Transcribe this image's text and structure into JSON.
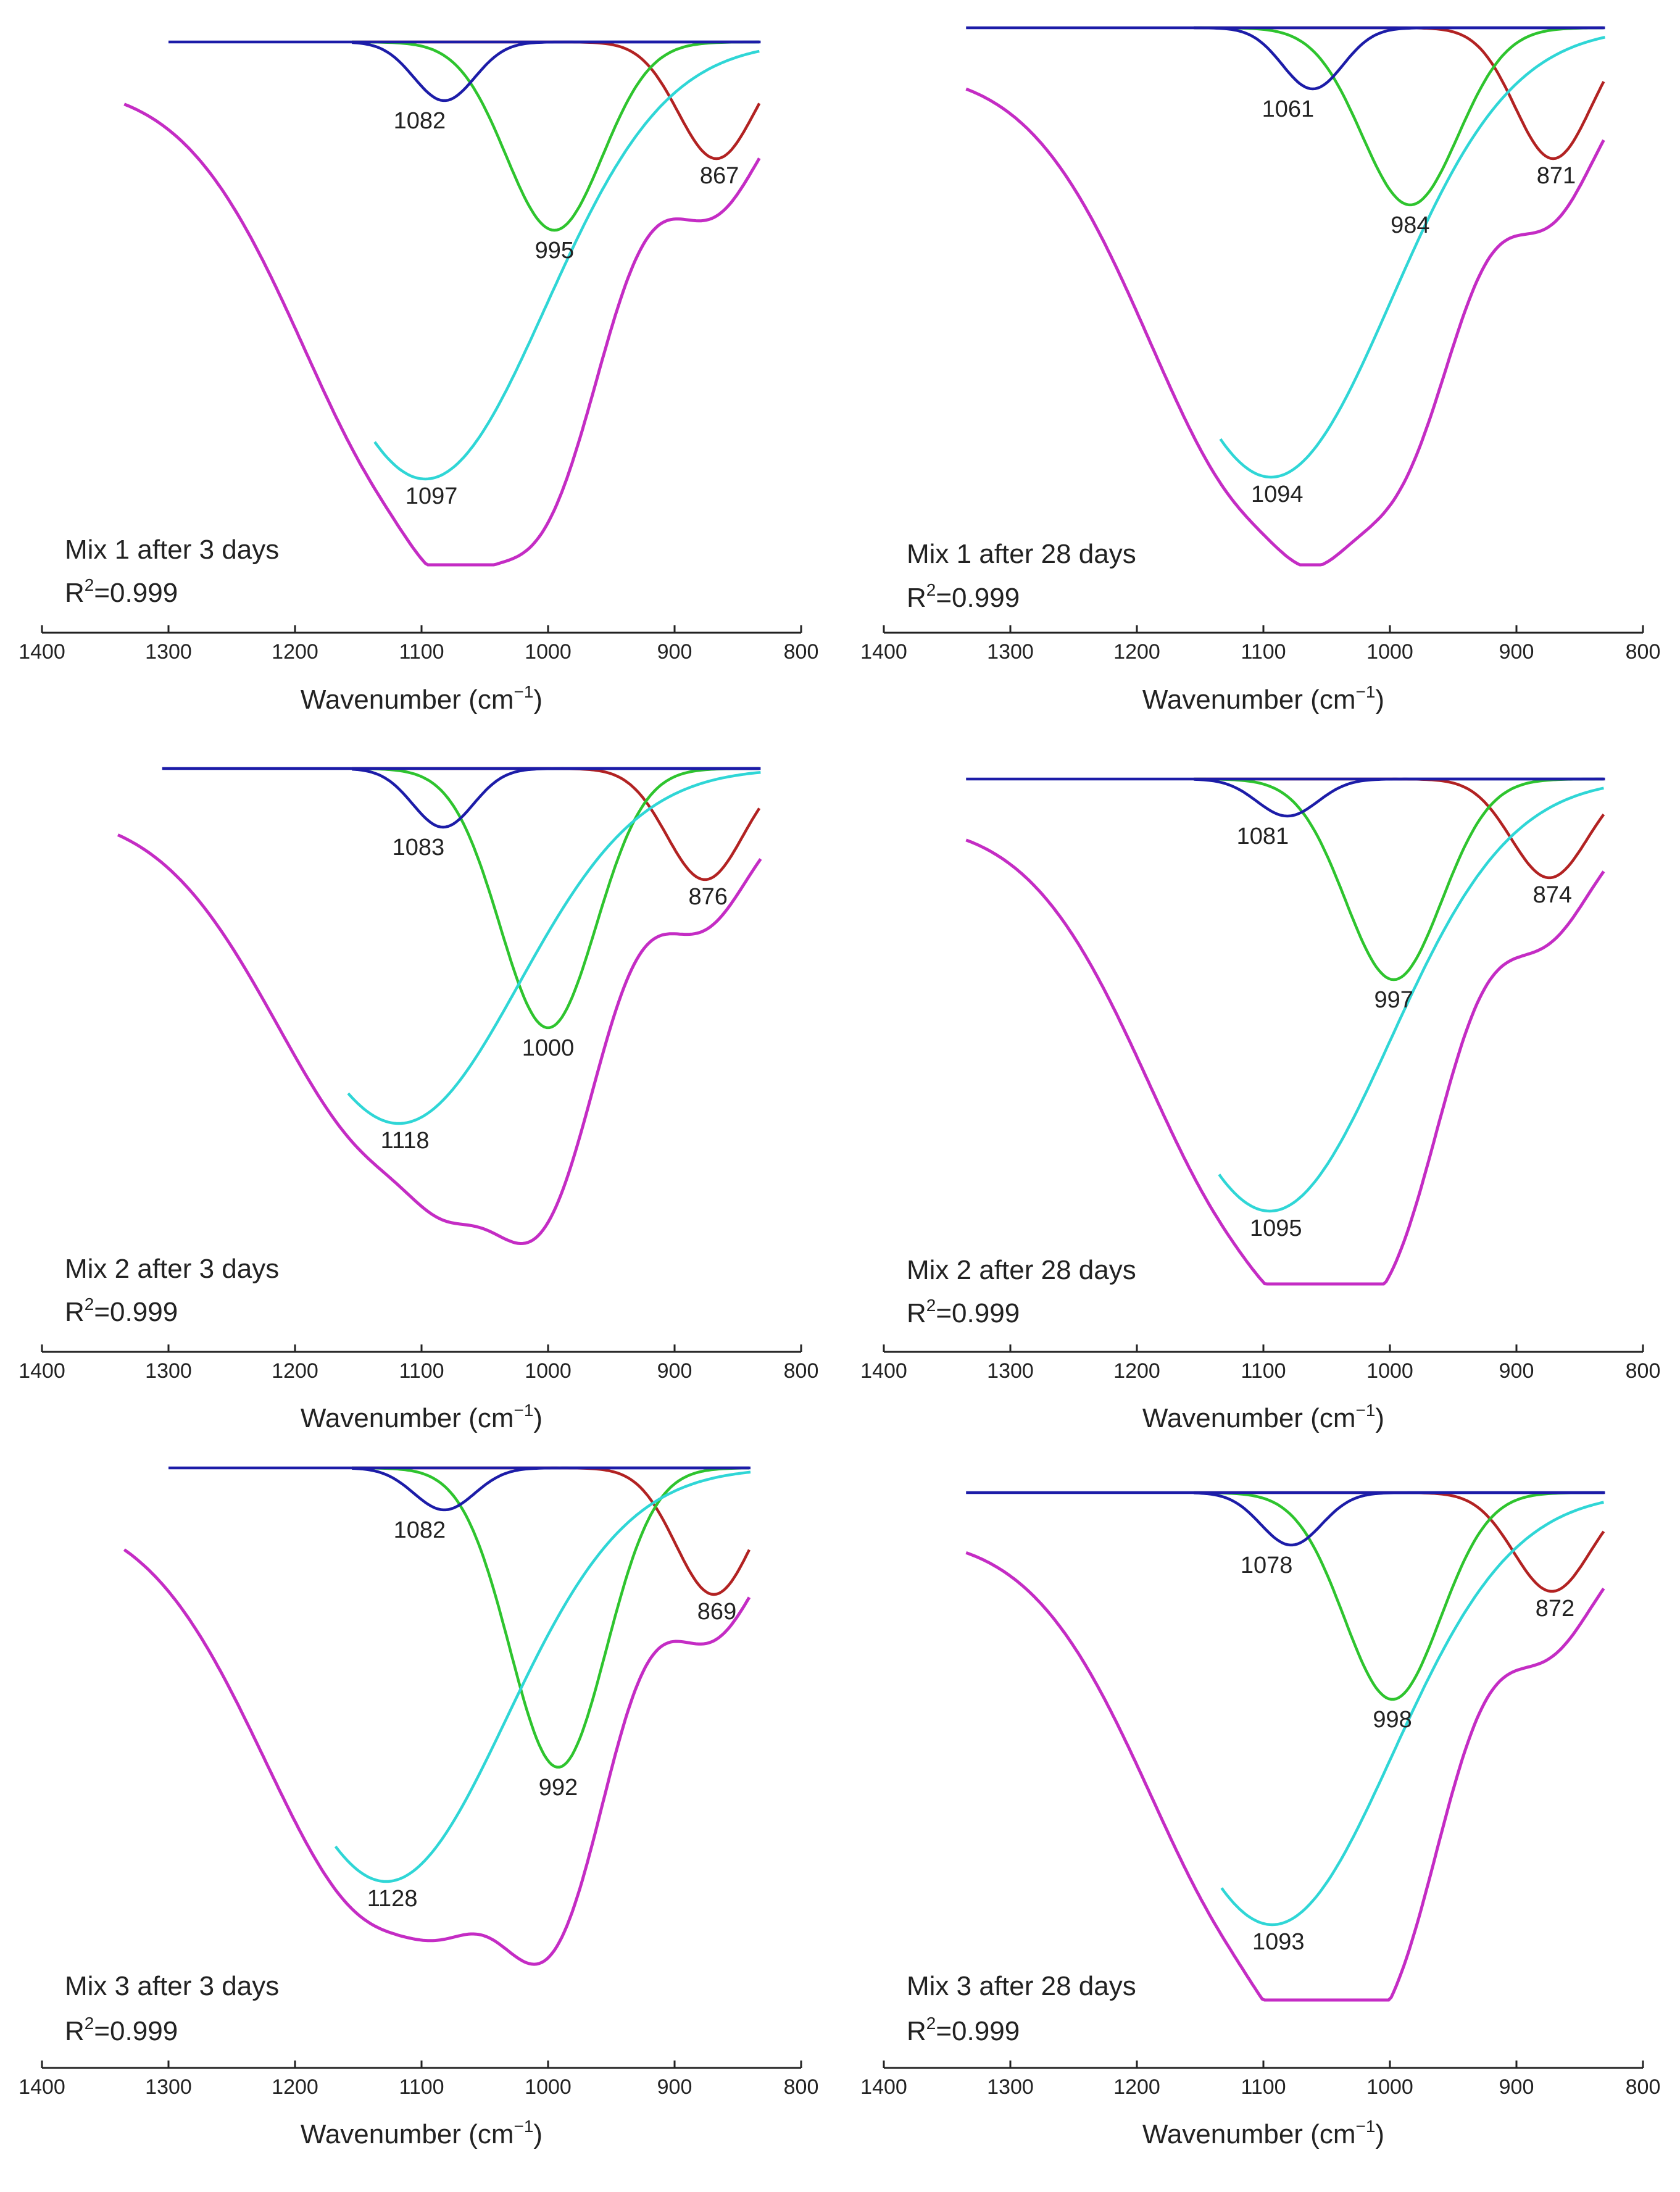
{
  "figure": {
    "colors": {
      "composite": "#c42cc4",
      "broad_band": "#2fd6d6",
      "green_band": "#2ec42e",
      "red_band": "#b22222",
      "blue_band": "#1c1ca8",
      "axis": "#222222"
    }
  },
  "chart_data": [
    {
      "type": "line",
      "panel": "mix1-3days",
      "title": "Mix 1 after 3 days",
      "r2_prefix": "R",
      "r2_exponent": "2",
      "r2_value": "=0.999",
      "xlabel_main": "Wavenumber (cm",
      "xlabel_exponent": "−1",
      "xlabel_close": ")",
      "xlim": [
        1400,
        800
      ],
      "x_reversed": true,
      "xticks": [
        1400,
        1300,
        1200,
        1100,
        1000,
        900,
        800
      ],
      "xtick_labels": [
        "1400",
        "1300",
        "1200",
        "1100",
        "1000",
        "900",
        "800"
      ],
      "x_range": [
        1335,
        832
      ],
      "series": [
        {
          "name": "composite",
          "color": "#c42cc4"
        },
        {
          "name": "band-1097",
          "center": 1097,
          "label": "1097",
          "color": "#2fd6d6"
        },
        {
          "name": "band-995",
          "center": 995,
          "label": "995",
          "color": "#2ec42e"
        },
        {
          "name": "band-867",
          "center": 867,
          "label": "867",
          "color": "#b22222"
        },
        {
          "name": "band-1082",
          "center": 1082,
          "label": "1082",
          "color": "#1c1ca8"
        }
      ]
    },
    {
      "type": "line",
      "panel": "mix1-28days",
      "title": "Mix 1 after 28 days",
      "r2_prefix": "R",
      "r2_exponent": "2",
      "r2_value": "=0.999",
      "xlabel_main": "Wavenumber (cm",
      "xlabel_exponent": "−1",
      "xlabel_close": ")",
      "xlim": [
        1400,
        800
      ],
      "x_reversed": true,
      "xticks": [
        1400,
        1300,
        1200,
        1100,
        1000,
        900,
        800
      ],
      "xtick_labels": [
        "1400",
        "1300",
        "1200",
        "1100",
        "1000",
        "900",
        "800"
      ],
      "x_range": [
        1335,
        830
      ],
      "series": [
        {
          "name": "composite",
          "color": "#c42cc4"
        },
        {
          "name": "band-1094",
          "center": 1094,
          "label": "1094",
          "color": "#2fd6d6"
        },
        {
          "name": "band-984",
          "center": 984,
          "label": "984",
          "color": "#2ec42e"
        },
        {
          "name": "band-871",
          "center": 871,
          "label": "871",
          "color": "#b22222"
        },
        {
          "name": "band-1061",
          "center": 1061,
          "label": "1061",
          "color": "#1c1ca8"
        }
      ]
    },
    {
      "type": "line",
      "panel": "mix2-3days",
      "title": "Mix 2 after 3 days",
      "r2_prefix": "R",
      "r2_exponent": "2",
      "r2_value": "=0.999",
      "xlabel_main": "Wavenumber (cm",
      "xlabel_exponent": "−1",
      "xlabel_close": ")",
      "xlim": [
        1400,
        800
      ],
      "x_reversed": true,
      "xticks": [
        1400,
        1300,
        1200,
        1100,
        1000,
        900,
        800
      ],
      "xtick_labels": [
        "1400",
        "1300",
        "1200",
        "1100",
        "1000",
        "900",
        "800"
      ],
      "x_range": [
        1340,
        832
      ],
      "series": [
        {
          "name": "composite",
          "color": "#c42cc4"
        },
        {
          "name": "band-1118",
          "center": 1118,
          "label": "1118",
          "color": "#2fd6d6"
        },
        {
          "name": "band-1000",
          "center": 1000,
          "label": "1000",
          "color": "#2ec42e"
        },
        {
          "name": "band-876",
          "center": 876,
          "label": "876",
          "color": "#b22222"
        },
        {
          "name": "band-1083",
          "center": 1083,
          "label": "1083",
          "color": "#1c1ca8"
        }
      ]
    },
    {
      "type": "line",
      "panel": "mix2-28days",
      "title": "Mix 2 after 28 days",
      "r2_prefix": "R",
      "r2_exponent": "2",
      "r2_value": "=0.999",
      "xlabel_main": "Wavenumber (cm",
      "xlabel_exponent": "−1",
      "xlabel_close": ")",
      "xlim": [
        1400,
        800
      ],
      "x_reversed": true,
      "xticks": [
        1400,
        1300,
        1200,
        1100,
        1000,
        900,
        800
      ],
      "xtick_labels": [
        "1400",
        "1300",
        "1200",
        "1100",
        "1000",
        "900",
        "800"
      ],
      "x_range": [
        1335,
        830
      ],
      "series": [
        {
          "name": "composite",
          "color": "#c42cc4"
        },
        {
          "name": "band-1095",
          "center": 1095,
          "label": "1095",
          "color": "#2fd6d6"
        },
        {
          "name": "band-997",
          "center": 997,
          "label": "997",
          "color": "#2ec42e"
        },
        {
          "name": "band-874",
          "center": 874,
          "label": "874",
          "color": "#b22222"
        },
        {
          "name": "band-1081",
          "center": 1081,
          "label": "1081",
          "color": "#1c1ca8"
        }
      ]
    },
    {
      "type": "line",
      "panel": "mix3-3days",
      "title": "Mix 3 after 3 days",
      "r2_prefix": "R",
      "r2_exponent": "2",
      "r2_value": "=0.999",
      "xlabel_main": "Wavenumber (cm",
      "xlabel_exponent": "−1",
      "xlabel_close": ")",
      "xlim": [
        1400,
        800
      ],
      "x_reversed": true,
      "xticks": [
        1400,
        1300,
        1200,
        1100,
        1000,
        900,
        800
      ],
      "xtick_labels": [
        "1400",
        "1300",
        "1200",
        "1100",
        "1000",
        "900",
        "800"
      ],
      "x_range": [
        1335,
        840
      ],
      "series": [
        {
          "name": "composite",
          "color": "#c42cc4"
        },
        {
          "name": "band-1128",
          "center": 1128,
          "label": "1128",
          "color": "#2fd6d6"
        },
        {
          "name": "band-992",
          "center": 992,
          "label": "992",
          "color": "#2ec42e"
        },
        {
          "name": "band-869",
          "center": 869,
          "label": "869",
          "color": "#b22222"
        },
        {
          "name": "band-1082",
          "center": 1082,
          "label": "1082",
          "color": "#1c1ca8"
        }
      ]
    },
    {
      "type": "line",
      "panel": "mix3-28days",
      "title": "Mix 3 after 28 days",
      "r2_prefix": "R",
      "r2_exponent": "2",
      "r2_value": "=0.999",
      "xlabel_main": "Wavenumber (cm",
      "xlabel_exponent": "−1",
      "xlabel_close": ")",
      "xlim": [
        1400,
        800
      ],
      "x_reversed": true,
      "xticks": [
        1400,
        1300,
        1200,
        1100,
        1000,
        900,
        800
      ],
      "xtick_labels": [
        "1400",
        "1300",
        "1200",
        "1100",
        "1000",
        "900",
        "800"
      ],
      "x_range": [
        1335,
        830
      ],
      "series": [
        {
          "name": "composite",
          "color": "#c42cc4"
        },
        {
          "name": "band-1093",
          "center": 1093,
          "label": "1093",
          "color": "#2fd6d6"
        },
        {
          "name": "band-998",
          "center": 998,
          "label": "998",
          "color": "#2ec42e"
        },
        {
          "name": "band-872",
          "center": 872,
          "label": "872",
          "color": "#b22222"
        },
        {
          "name": "band-1078",
          "center": 1078,
          "label": "1078",
          "color": "#1c1ca8"
        }
      ]
    }
  ]
}
